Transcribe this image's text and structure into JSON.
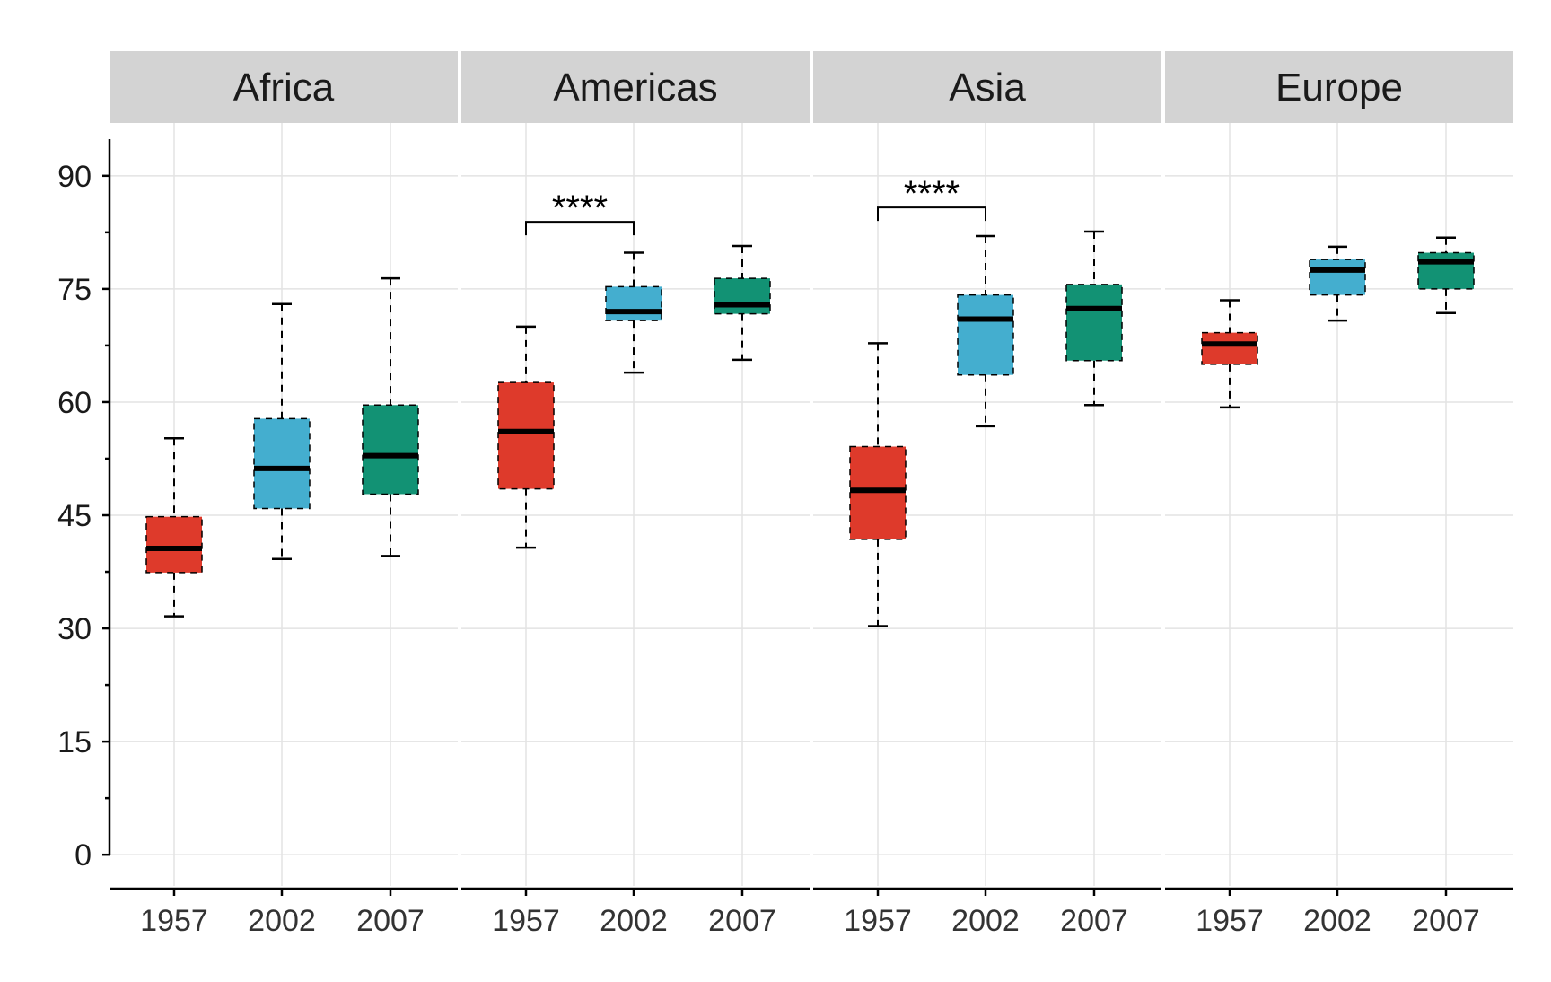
{
  "chart_data": {
    "type": "boxplot",
    "facets": [
      "Africa",
      "Americas",
      "Asia",
      "Europe"
    ],
    "categories": [
      "1957",
      "2002",
      "2007"
    ],
    "colors": {
      "1957": "#de3a2b",
      "2002": "#44aecf",
      "2007": "#129274"
    },
    "yticks": [
      "0",
      "15",
      "30",
      "45",
      "60",
      "75",
      "90"
    ],
    "ylim": [
      -4.5,
      97
    ],
    "grid": true,
    "legend": "none",
    "boxes": {
      "Africa": [
        {
          "category": "1957",
          "whisker_low": 31.6,
          "q1": 37.4,
          "median": 40.6,
          "q3": 44.8,
          "whisker_high": 55.2
        },
        {
          "category": "2002",
          "whisker_low": 39.2,
          "q1": 45.9,
          "median": 51.2,
          "q3": 57.8,
          "whisker_high": 73.0
        },
        {
          "category": "2007",
          "whisker_low": 39.6,
          "q1": 47.8,
          "median": 52.9,
          "q3": 59.6,
          "whisker_high": 76.4
        }
      ],
      "Americas": [
        {
          "category": "1957",
          "whisker_low": 40.7,
          "q1": 48.5,
          "median": 56.1,
          "q3": 62.6,
          "whisker_high": 70.0
        },
        {
          "category": "2002",
          "whisker_low": 63.9,
          "q1": 70.8,
          "median": 72.0,
          "q3": 75.3,
          "whisker_high": 79.8
        },
        {
          "category": "2007",
          "whisker_low": 65.6,
          "q1": 71.7,
          "median": 72.9,
          "q3": 76.4,
          "whisker_high": 80.7
        }
      ],
      "Asia": [
        {
          "category": "1957",
          "whisker_low": 30.3,
          "q1": 41.8,
          "median": 48.3,
          "q3": 54.1,
          "whisker_high": 67.8
        },
        {
          "category": "2002",
          "whisker_low": 56.8,
          "q1": 63.6,
          "median": 71.0,
          "q3": 74.2,
          "whisker_high": 82.0
        },
        {
          "category": "2007",
          "whisker_low": 59.6,
          "q1": 65.5,
          "median": 72.4,
          "q3": 75.6,
          "whisker_high": 82.6
        }
      ],
      "Europe": [
        {
          "category": "1957",
          "whisker_low": 59.3,
          "q1": 65.0,
          "median": 67.7,
          "q3": 69.2,
          "whisker_high": 73.5
        },
        {
          "category": "2002",
          "whisker_low": 70.8,
          "q1": 74.2,
          "median": 77.5,
          "q3": 78.9,
          "whisker_high": 80.6
        },
        {
          "category": "2007",
          "whisker_low": 71.8,
          "q1": 75.0,
          "median": 78.6,
          "q3": 79.8,
          "whisker_high": 81.8
        }
      ]
    },
    "annotations": [
      {
        "facet": "Americas",
        "from": "1957",
        "to": "2002",
        "label": "****",
        "y": 83.9
      },
      {
        "facet": "Asia",
        "from": "1957",
        "to": "2002",
        "label": "****",
        "y": 85.8
      }
    ]
  }
}
